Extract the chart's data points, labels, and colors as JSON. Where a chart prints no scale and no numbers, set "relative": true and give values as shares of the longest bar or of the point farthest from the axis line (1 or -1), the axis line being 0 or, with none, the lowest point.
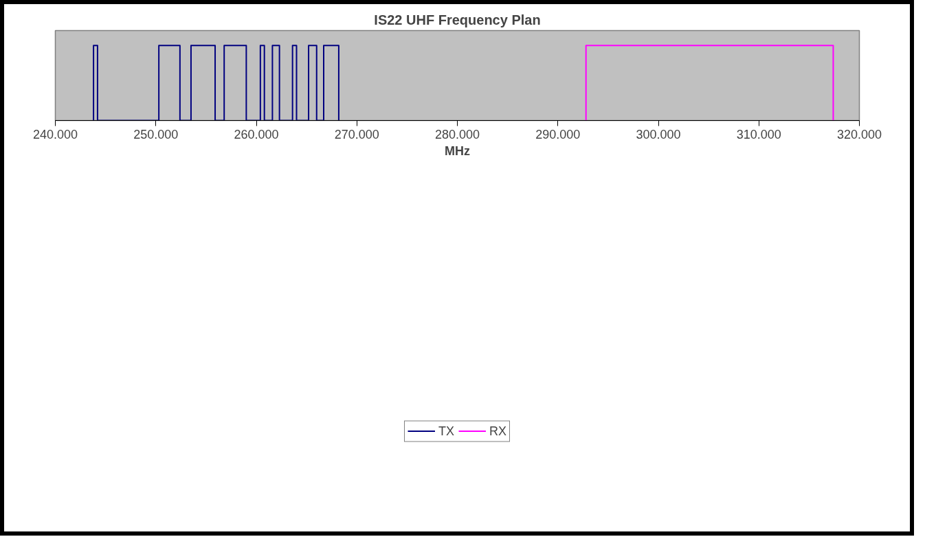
{
  "chart_data": {
    "type": "line",
    "title": "IS22 UHF Frequency Plan",
    "xlabel": "MHz",
    "relative": true,
    "xlim": [
      240,
      320
    ],
    "xticks": [
      {
        "value": 240,
        "label": "240.000"
      },
      {
        "value": 250,
        "label": "250.000"
      },
      {
        "value": 260,
        "label": "260.000"
      },
      {
        "value": 270,
        "label": "270.000"
      },
      {
        "value": 280,
        "label": "280.000"
      },
      {
        "value": 290,
        "label": "290.000"
      },
      {
        "value": 300,
        "label": "300.000"
      },
      {
        "value": 310,
        "label": "310.000"
      },
      {
        "value": 320,
        "label": "320.000"
      }
    ],
    "series": [
      {
        "name": "TX",
        "color": "#000080",
        "x": [
          243.8,
          243.8,
          244.2,
          244.2,
          250.3,
          250.3,
          252.4,
          252.4,
          253.5,
          253.5,
          255.9,
          255.9,
          256.8,
          256.8,
          259.0,
          259.0,
          260.4,
          260.4,
          260.8,
          260.8,
          261.6,
          261.6,
          262.3,
          262.3,
          263.6,
          263.6,
          264.0,
          264.0,
          265.2,
          265.2,
          266.0,
          266.0,
          266.7,
          266.7,
          268.2,
          268.2
        ],
        "values": [
          0,
          1,
          1,
          0,
          0,
          1,
          1,
          0,
          0,
          1,
          1,
          0,
          0,
          1,
          1,
          0,
          0,
          1,
          1,
          0,
          0,
          1,
          1,
          0,
          0,
          1,
          1,
          0,
          0,
          1,
          1,
          0,
          0,
          1,
          1,
          0
        ]
      },
      {
        "name": "RX",
        "color": "#ff00ff",
        "x": [
          292.8,
          292.8,
          317.4,
          317.4
        ],
        "values": [
          0,
          1,
          1,
          0
        ]
      }
    ],
    "legend": "bottom",
    "grid": false,
    "line_style": "solid"
  }
}
